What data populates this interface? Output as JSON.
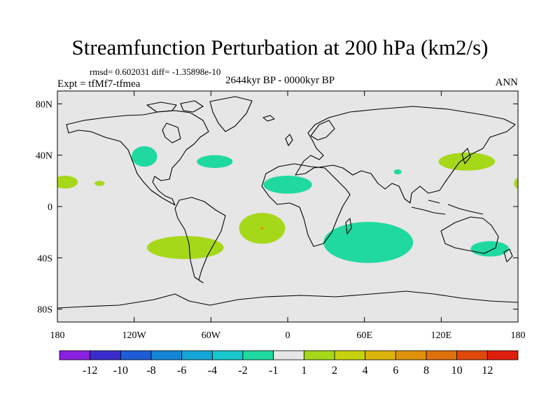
{
  "chart_data": {
    "type": "heatmap",
    "title": "Streamfunction Perturbation at 200 hPa (km2/s)",
    "stats_text": "rmsd= 0.602031 diff= -1.35898e-10",
    "experiment": "Expt = tfMf7-tfmea",
    "period": "2644kyr BP - 0000kyr BP",
    "season": "ANN",
    "xlim": [
      -180,
      180
    ],
    "ylim": [
      -90,
      90
    ],
    "x_ticks": [
      {
        "value": -180,
        "label": "180"
      },
      {
        "value": -120,
        "label": "120W"
      },
      {
        "value": -60,
        "label": "60W"
      },
      {
        "value": 0,
        "label": "0"
      },
      {
        "value": 60,
        "label": "60E"
      },
      {
        "value": 120,
        "label": "120E"
      },
      {
        "value": 180,
        "label": "180"
      }
    ],
    "y_ticks": [
      {
        "value": 80,
        "label": "80N"
      },
      {
        "value": 40,
        "label": "40N"
      },
      {
        "value": 0,
        "label": "0"
      },
      {
        "value": -40,
        "label": "40S"
      },
      {
        "value": -80,
        "label": "80S"
      }
    ],
    "background_color": "#e6e6e6",
    "colorbar": {
      "bins": [
        {
          "label": null,
          "color": "#8a20e0"
        },
        {
          "label": "-12",
          "color": "#3a2ccc"
        },
        {
          "label": "-10",
          "color": "#1c5cd6"
        },
        {
          "label": "-8",
          "color": "#1585d8"
        },
        {
          "label": "-6",
          "color": "#14a6d6"
        },
        {
          "label": "-4",
          "color": "#19c6cc"
        },
        {
          "label": "-2",
          "color": "#1fd9a0"
        },
        {
          "label": "-1",
          "color": "#e6e6e6"
        },
        {
          "label": "1",
          "color": "#a6d81a"
        },
        {
          "label": "2",
          "color": "#c8d20c"
        },
        {
          "label": "4",
          "color": "#dcb40a"
        },
        {
          "label": "6",
          "color": "#e0920a"
        },
        {
          "label": "8",
          "color": "#e0700c"
        },
        {
          "label": "10",
          "color": "#e0480c"
        },
        {
          "label": "12",
          "color": "#e01e0c"
        }
      ]
    },
    "anomaly_regions": [
      {
        "name": "north-pacific-east",
        "sign": "negative",
        "color": "#1fd9a0",
        "lon": -112,
        "lat": 39,
        "dlon": 10,
        "dlat": 8
      },
      {
        "name": "north-atlantic-west",
        "sign": "negative",
        "color": "#1fd9a0",
        "lon": -57,
        "lat": 35,
        "dlon": 14,
        "dlat": 5
      },
      {
        "name": "north-africa",
        "sign": "negative",
        "color": "#1fd9a0",
        "lon": 0,
        "lat": 17,
        "dlon": 19,
        "dlat": 7
      },
      {
        "name": "arabian-small",
        "sign": "negative",
        "color": "#1fd9a0",
        "lon": 86,
        "lat": 27,
        "dlon": 3,
        "dlat": 2
      },
      {
        "name": "indian-ocean",
        "sign": "negative",
        "color": "#1fd9a0",
        "lon": 63,
        "lat": -28,
        "dlon": 35,
        "dlat": 16
      },
      {
        "name": "tasman",
        "sign": "negative",
        "color": "#1fd9a0",
        "lon": 158,
        "lat": -33,
        "dlon": 15,
        "dlat": 6
      },
      {
        "name": "pacific-180-edge",
        "sign": "positive",
        "color": "#a6d81a",
        "lon": -174,
        "lat": 19,
        "dlon": 10,
        "dlat": 5
      },
      {
        "name": "pacific-small",
        "sign": "positive",
        "color": "#a6d81a",
        "lon": -147,
        "lat": 18,
        "dlon": 4,
        "dlat": 2
      },
      {
        "name": "northwest-pacific",
        "sign": "positive",
        "color": "#a6d81a",
        "lon": 140,
        "lat": 35,
        "dlon": 22,
        "dlat": 7
      },
      {
        "name": "pacific-east-edge",
        "sign": "positive",
        "color": "#a6d81a",
        "lon": 180,
        "lat": 18,
        "dlon": 3,
        "dlat": 4
      },
      {
        "name": "south-america-band",
        "sign": "positive",
        "color": "#a6d81a",
        "lon": -80,
        "lat": -32,
        "dlon": 30,
        "dlat": 9
      },
      {
        "name": "south-atlantic-upper",
        "sign": "positive",
        "color": "#a6d81a",
        "lon": -20,
        "lat": -17,
        "dlon": 18,
        "dlat": 12
      }
    ],
    "maximum_marker": {
      "lon": -20,
      "lat": -17,
      "color": "#e0920a"
    }
  }
}
